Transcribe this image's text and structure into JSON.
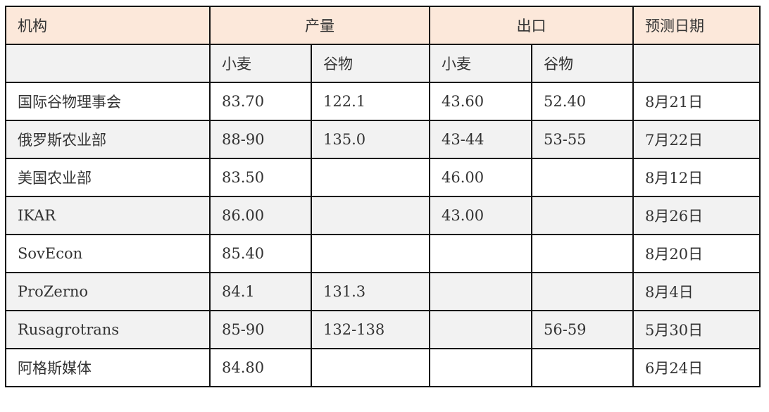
{
  "header": {
    "org": "机构",
    "production": "产量",
    "export": "出口",
    "forecast_date": "预测日期"
  },
  "subheader": {
    "prod_wheat": "小麦",
    "prod_grain": "谷物",
    "exp_wheat": "小麦",
    "exp_grain": "谷物"
  },
  "colors": {
    "header_bg": "#fce8da",
    "shaded_row_bg": "#f2f2f2",
    "border": "#111111"
  },
  "rows": [
    {
      "org": "国际谷物理事会",
      "prod_wheat": "83.70",
      "prod_grain": "122.1",
      "exp_wheat": "43.60",
      "exp_grain": "52.40",
      "date": "8月21日",
      "shaded": false
    },
    {
      "org": "俄罗斯农业部",
      "prod_wheat": "88-90",
      "prod_grain": "135.0",
      "exp_wheat": "43-44",
      "exp_grain": "53-55",
      "date": "7月22日",
      "shaded": true
    },
    {
      "org": "美国农业部",
      "prod_wheat": "83.50",
      "prod_grain": "",
      "exp_wheat": "46.00",
      "exp_grain": "",
      "date": "8月12日",
      "shaded": false
    },
    {
      "org": "IKAR",
      "prod_wheat": "86.00",
      "prod_grain": "",
      "exp_wheat": "43.00",
      "exp_grain": "",
      "date": "8月26日",
      "shaded": true
    },
    {
      "org": "SovEcon",
      "prod_wheat": "85.40",
      "prod_grain": "",
      "exp_wheat": "",
      "exp_grain": "",
      "date": "8月20日",
      "shaded": false
    },
    {
      "org": "ProZerno",
      "prod_wheat": "84.1",
      "prod_grain": "131.3",
      "exp_wheat": "",
      "exp_grain": "",
      "date": "8月4日",
      "shaded": true
    },
    {
      "org": "Rusagrotrans",
      "prod_wheat": "85-90",
      "prod_grain": "132-138",
      "exp_wheat": "",
      "exp_grain": "56-59",
      "date": "5月30日",
      "shaded": true
    },
    {
      "org": "阿格斯媒体",
      "prod_wheat": "84.80",
      "prod_grain": "",
      "exp_wheat": "",
      "exp_grain": "",
      "date": "6月24日",
      "shaded": false
    }
  ]
}
